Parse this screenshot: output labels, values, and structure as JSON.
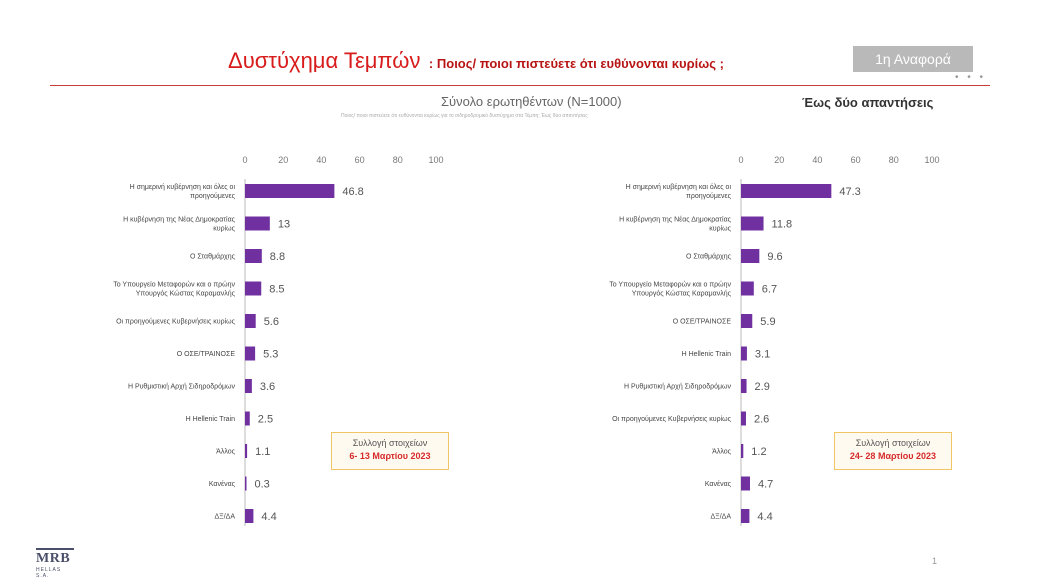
{
  "header": {
    "title": "Δυστύχημα Τεμπών",
    "question": ": Ποιος/ ποιοι πιστεύετε ότι ευθύνονται κυρίως ;",
    "badge": "1η Αναφορά",
    "sample": "Σύνολο ερωτηθέντων (N=1000)",
    "note": "Ποιος/ ποιοι πιστεύετε ότι ευθύνονται κυρίως για το σιδηροδρομικό δυστύχημα στα Τέμπη; Έως δύο απαντήσεις",
    "answers": "Έως δύο απαντήσεις"
  },
  "colors": {
    "bar": "#7030a0",
    "title": "#d81b1b",
    "rule": "#c73b3b",
    "accent": "#d52a2a"
  },
  "footer": {
    "logo": "MRB",
    "logo_sub": "HELLAS S.A.",
    "page": "1"
  },
  "chart_data": [
    {
      "type": "bar",
      "orientation": "horizontal",
      "xlim": [
        0,
        100
      ],
      "ticks": [
        0,
        20,
        40,
        60,
        80,
        100
      ],
      "categories": [
        [
          "Η σημερινή κυβέρνηση και όλες οι",
          "προηγούμενες"
        ],
        [
          "Η κυβέρνηση της Νέας Δημοκρατίας",
          "κυρίως"
        ],
        [
          "Ο Σταθμάρχης"
        ],
        [
          "Το Υπουργείο Μεταφορών και ο πρώην",
          "Υπουργός Κώστας Καραμανλής"
        ],
        [
          "Οι προηγούμενες Κυβερνήσεις κυρίως"
        ],
        [
          "Ο ΟΣΕ/ΤΡΑΙΝΟΣΕ"
        ],
        [
          "Η Ρυθμιστική Αρχή Σιδηροδρόμων"
        ],
        [
          "Η Hellenic Train"
        ],
        [
          "Άλλος"
        ],
        [
          "Κανένας"
        ],
        [
          "ΔΞ/ΔΑ"
        ]
      ],
      "values": [
        46.8,
        13,
        8.8,
        8.5,
        5.6,
        5.3,
        3.6,
        2.5,
        1.1,
        0.3,
        4.4
      ],
      "collection_label": "Συλλογή στοιχείων",
      "collection_dates": "6- 13 Μαρτίου 2023"
    },
    {
      "type": "bar",
      "orientation": "horizontal",
      "xlim": [
        0,
        100
      ],
      "ticks": [
        0,
        20,
        40,
        60,
        80,
        100
      ],
      "categories": [
        [
          "Η σημερινή κυβέρνηση και όλες οι",
          "προηγούμενες"
        ],
        [
          "Η κυβέρνηση της Νέας Δημοκρατίας",
          "κυρίως"
        ],
        [
          "Ο Σταθμάρχης"
        ],
        [
          "Το Υπουργείο Μεταφορών και ο πρώην",
          "Υπουργός Κώστας Καραμανλής"
        ],
        [
          "Ο ΟΣΕ/ΤΡΑΙΝΟΣΕ"
        ],
        [
          "Η Hellenic Train"
        ],
        [
          "Η Ρυθμιστική Αρχή Σιδηροδρόμων"
        ],
        [
          "Οι προηγούμενες Κυβερνήσεις κυρίως"
        ],
        [
          "Άλλος"
        ],
        [
          "Κανένας"
        ],
        [
          "ΔΞ/ΔΑ"
        ]
      ],
      "values": [
        47.3,
        11.8,
        9.6,
        6.7,
        5.9,
        3.1,
        2.9,
        2.6,
        1.2,
        4.7,
        4.4
      ],
      "collection_label": "Συλλογή στοιχείων",
      "collection_dates": "24- 28 Μαρτίου 2023"
    }
  ]
}
